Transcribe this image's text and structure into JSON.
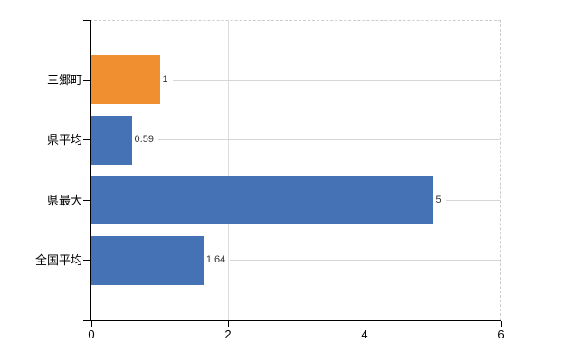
{
  "chart_data": {
    "type": "bar",
    "orientation": "horizontal",
    "title": "",
    "categories": [
      "三郷町",
      "県平均",
      "県最大",
      "全国平均"
    ],
    "values": [
      1,
      0.59,
      5,
      1.64
    ],
    "value_labels": [
      "1",
      "0.59",
      "5",
      "1.64"
    ],
    "bar_colors": [
      "#ef8f30",
      "#4472b4",
      "#4472b4",
      "#4472b4"
    ],
    "xlabel": "",
    "ylabel": "",
    "xlim": [
      0,
      6
    ],
    "x_ticks": [
      0,
      2,
      4,
      6
    ],
    "x_tick_labels": [
      "0",
      "2",
      "4",
      "6"
    ],
    "grid": true,
    "legend_position": "none",
    "colors": {
      "highlight_bar": "#ef8f30",
      "default_bar": "#4472b4",
      "axis": "#000000",
      "gridline": "#dcdcdc",
      "leader_line": "#d6d6d6",
      "dashed_border": "#cccccc",
      "background": "#ffffff",
      "tick_text": "#000000",
      "value_text": "#333333"
    }
  }
}
